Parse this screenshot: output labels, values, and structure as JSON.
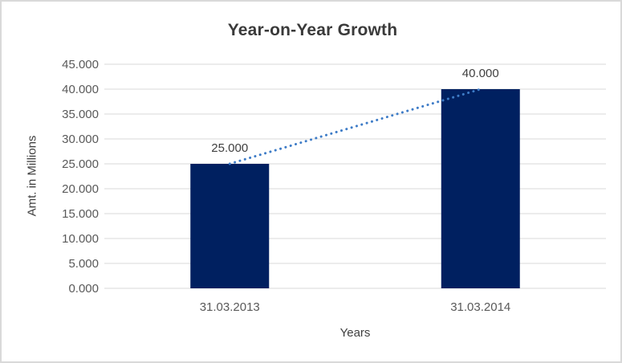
{
  "chart_data": {
    "type": "bar",
    "title": "Year-on-Year Growth",
    "xlabel": "Years",
    "ylabel": "Amt. in Millions",
    "categories": [
      "31.03.2013",
      "31.03.2014"
    ],
    "values": [
      25.0,
      40.0
    ],
    "value_labels": [
      "25.000",
      "40.000"
    ],
    "ylim": [
      0,
      45
    ],
    "ytick_values": [
      0,
      5,
      10,
      15,
      20,
      25,
      30,
      35,
      40,
      45
    ],
    "ytick_labels": [
      "0.000",
      "5.000",
      "10.000",
      "15.000",
      "20.000",
      "25.000",
      "30.000",
      "35.000",
      "40.000",
      "45.000"
    ],
    "grid": true,
    "legend": "none",
    "trendline": {
      "style": "dotted",
      "x": [
        0,
        1
      ],
      "y": [
        25.0,
        40.0
      ]
    },
    "colors": {
      "bar": "#002060",
      "trendline": "#3E7CC7",
      "gridline": "#D9D9D9",
      "axis_line": "#D9D9D9",
      "tick_text": "#595959",
      "label_text": "#404040",
      "title_text": "#3A3A3A",
      "frame_border": "#D9D9D9",
      "background": "#FFFFFF"
    }
  }
}
